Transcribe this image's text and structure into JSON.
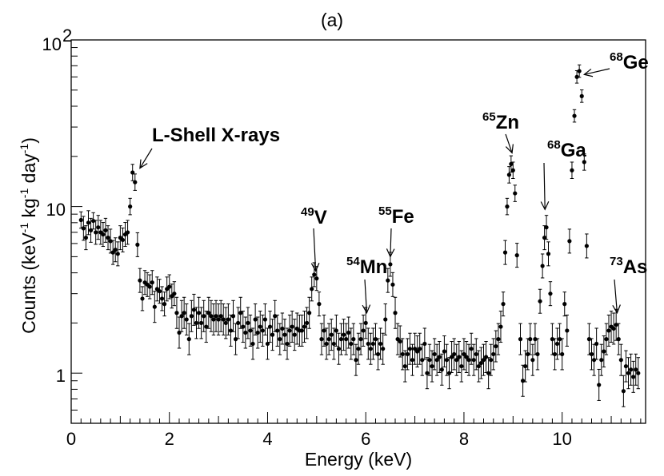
{
  "chart_data": {
    "type": "scatter",
    "title": "(a)",
    "xlabel": "Energy (keV)",
    "ylabel": {
      "prefix": "Counts (keV",
      "sup1": "-1",
      "mid1": " kg",
      "sup2": "-1",
      "mid2": " day",
      "sup3": "-1",
      "suffix": ")"
    },
    "xlim": [
      0,
      11.7
    ],
    "ylim": [
      0.5,
      100
    ],
    "yscale": "log",
    "x_ticks": [
      0,
      2,
      4,
      6,
      8,
      10
    ],
    "x_tick_labels": [
      "0",
      "2",
      "4",
      "6",
      "8",
      "10"
    ],
    "y_tick_labels": {
      "one": "1",
      "ten": "10",
      "hundred_base": "10",
      "hundred_exp": "2"
    },
    "series": [
      {
        "name": "spectrum",
        "points": [
          [
            0.2,
            8.3
          ],
          [
            0.25,
            7.4
          ],
          [
            0.3,
            6.5
          ],
          [
            0.35,
            8.0
          ],
          [
            0.4,
            7.2
          ],
          [
            0.45,
            8.2
          ],
          [
            0.5,
            7.0
          ],
          [
            0.55,
            7.5
          ],
          [
            0.6,
            7.0
          ],
          [
            0.65,
            6.8
          ],
          [
            0.7,
            7.2
          ],
          [
            0.75,
            6.5
          ],
          [
            0.8,
            6.2
          ],
          [
            0.85,
            5.3
          ],
          [
            0.9,
            5.5
          ],
          [
            0.95,
            5.2
          ],
          [
            1.0,
            6.5
          ],
          [
            1.05,
            6.3
          ],
          [
            1.1,
            6.8
          ],
          [
            1.15,
            7.0
          ],
          [
            1.2,
            10.0
          ],
          [
            1.25,
            16.0
          ],
          [
            1.3,
            14.0
          ],
          [
            1.35,
            5.9
          ],
          [
            1.4,
            3.6
          ],
          [
            1.45,
            2.8
          ],
          [
            1.5,
            3.5
          ],
          [
            1.55,
            3.4
          ],
          [
            1.6,
            3.3
          ],
          [
            1.65,
            3.5
          ],
          [
            1.7,
            2.5
          ],
          [
            1.75,
            3.2
          ],
          [
            1.8,
            3.1
          ],
          [
            1.85,
            2.8
          ],
          [
            1.9,
            2.6
          ],
          [
            1.95,
            3.2
          ],
          [
            2.0,
            3.3
          ],
          [
            2.05,
            2.9
          ],
          [
            2.1,
            3.0
          ],
          [
            2.15,
            2.3
          ],
          [
            2.2,
            1.75
          ],
          [
            2.25,
            2.2
          ],
          [
            2.3,
            2.3
          ],
          [
            2.35,
            2.1
          ],
          [
            2.4,
            1.6
          ],
          [
            2.45,
            2.2
          ],
          [
            2.5,
            2.4
          ],
          [
            2.55,
            2.0
          ],
          [
            2.6,
            2.3
          ],
          [
            2.65,
            2.0
          ],
          [
            2.7,
            2.2
          ],
          [
            2.75,
            1.9
          ],
          [
            2.8,
            2.3
          ],
          [
            2.85,
            2.2
          ],
          [
            2.9,
            2.1
          ],
          [
            2.95,
            2.2
          ],
          [
            3.0,
            2.1
          ],
          [
            3.05,
            2.2
          ],
          [
            3.1,
            2.1
          ],
          [
            3.15,
            2.0
          ],
          [
            3.2,
            2.1
          ],
          [
            3.25,
            1.8
          ],
          [
            3.3,
            2.2
          ],
          [
            3.35,
            1.6
          ],
          [
            3.4,
            2.0
          ],
          [
            3.45,
            2.3
          ],
          [
            3.5,
            1.9
          ],
          [
            3.55,
            1.75
          ],
          [
            3.6,
            2.0
          ],
          [
            3.65,
            1.8
          ],
          [
            3.7,
            1.5
          ],
          [
            3.75,
            2.1
          ],
          [
            3.8,
            1.75
          ],
          [
            3.85,
            1.9
          ],
          [
            3.9,
            1.8
          ],
          [
            3.95,
            2.1
          ],
          [
            4.0,
            1.5
          ],
          [
            4.05,
            1.9
          ],
          [
            4.1,
            1.7
          ],
          [
            4.15,
            2.2
          ],
          [
            4.2,
            1.8
          ],
          [
            4.25,
            1.6
          ],
          [
            4.3,
            1.85
          ],
          [
            4.35,
            1.7
          ],
          [
            4.4,
            1.5
          ],
          [
            4.45,
            1.8
          ],
          [
            4.5,
            1.9
          ],
          [
            4.55,
            1.7
          ],
          [
            4.6,
            1.85
          ],
          [
            4.65,
            1.8
          ],
          [
            4.7,
            1.8
          ],
          [
            4.75,
            1.9
          ],
          [
            4.8,
            2.0
          ],
          [
            4.85,
            2.3
          ],
          [
            4.9,
            3.2
          ],
          [
            4.95,
            3.9
          ],
          [
            5.0,
            3.7
          ],
          [
            5.05,
            2.6
          ],
          [
            5.1,
            1.6
          ],
          [
            5.15,
            1.8
          ],
          [
            5.2,
            1.5
          ],
          [
            5.25,
            1.6
          ],
          [
            5.3,
            1.7
          ],
          [
            5.35,
            1.5
          ],
          [
            5.4,
            1.8
          ],
          [
            5.45,
            1.4
          ],
          [
            5.5,
            1.6
          ],
          [
            5.55,
            1.7
          ],
          [
            5.6,
            1.6
          ],
          [
            5.65,
            1.75
          ],
          [
            5.7,
            1.5
          ],
          [
            5.75,
            1.6
          ],
          [
            5.8,
            1.2
          ],
          [
            5.85,
            1.4
          ],
          [
            5.9,
            1.6
          ],
          [
            5.95,
            1.8
          ],
          [
            6.0,
            2.0
          ],
          [
            6.05,
            1.5
          ],
          [
            6.1,
            1.4
          ],
          [
            6.15,
            1.5
          ],
          [
            6.2,
            1.6
          ],
          [
            6.25,
            1.3
          ],
          [
            6.3,
            1.5
          ],
          [
            6.35,
            1.4
          ],
          [
            6.4,
            2.1
          ],
          [
            6.45,
            3.6
          ],
          [
            6.5,
            4.5
          ],
          [
            6.55,
            3.4
          ],
          [
            6.6,
            2.3
          ],
          [
            6.65,
            1.6
          ],
          [
            6.7,
            1.55
          ],
          [
            6.75,
            1.3
          ],
          [
            6.8,
            1.1
          ],
          [
            6.85,
            1.3
          ],
          [
            6.9,
            1.4
          ],
          [
            6.95,
            1.2
          ],
          [
            7.0,
            1.4
          ],
          [
            7.05,
            1.35
          ],
          [
            7.1,
            1.4
          ],
          [
            7.15,
            1.2
          ],
          [
            7.2,
            1.5
          ],
          [
            7.25,
            1.0
          ],
          [
            7.3,
            1.2
          ],
          [
            7.35,
            1.1
          ],
          [
            7.4,
            1.3
          ],
          [
            7.45,
            1.2
          ],
          [
            7.5,
            1.25
          ],
          [
            7.55,
            1.05
          ],
          [
            7.6,
            1.35
          ],
          [
            7.65,
            1.2
          ],
          [
            7.7,
            1.0
          ],
          [
            7.75,
            1.25
          ],
          [
            7.8,
            1.3
          ],
          [
            7.85,
            1.2
          ],
          [
            7.9,
            1.25
          ],
          [
            7.95,
            1.1
          ],
          [
            8.0,
            1.3
          ],
          [
            8.05,
            1.25
          ],
          [
            8.1,
            1.2
          ],
          [
            8.15,
            1.4
          ],
          [
            8.2,
            1.2
          ],
          [
            8.25,
            1.3
          ],
          [
            8.3,
            1.1
          ],
          [
            8.35,
            1.15
          ],
          [
            8.4,
            1.2
          ],
          [
            8.45,
            1.25
          ],
          [
            8.5,
            1.0
          ],
          [
            8.55,
            1.2
          ],
          [
            8.6,
            1.3
          ],
          [
            8.65,
            1.45
          ],
          [
            8.7,
            1.6
          ],
          [
            8.75,
            1.9
          ],
          [
            8.8,
            2.6
          ],
          [
            8.84,
            5.3
          ],
          [
            8.88,
            10.0
          ],
          [
            8.92,
            15.5
          ],
          [
            8.96,
            18.0
          ],
          [
            9.0,
            16.5
          ],
          [
            9.04,
            12.0
          ],
          [
            9.08,
            5.1
          ],
          [
            9.15,
            1.6
          ],
          [
            9.2,
            0.9
          ],
          [
            9.25,
            1.1
          ],
          [
            9.3,
            1.3
          ],
          [
            9.35,
            1.6
          ],
          [
            9.4,
            1.2
          ],
          [
            9.45,
            1.6
          ],
          [
            9.5,
            1.3
          ],
          [
            9.55,
            2.7
          ],
          [
            9.6,
            4.4
          ],
          [
            9.64,
            6.5
          ],
          [
            9.68,
            7.5
          ],
          [
            9.72,
            5.2
          ],
          [
            9.76,
            3.0
          ],
          [
            9.8,
            1.6
          ],
          [
            9.85,
            1.3
          ],
          [
            9.9,
            1.5
          ],
          [
            9.95,
            1.6
          ],
          [
            10.0,
            1.3
          ],
          [
            10.05,
            2.6
          ],
          [
            10.1,
            1.8
          ],
          [
            10.15,
            6.2
          ],
          [
            10.2,
            16.5
          ],
          [
            10.25,
            35.0
          ],
          [
            10.3,
            60.0
          ],
          [
            10.35,
            65.0
          ],
          [
            10.4,
            46.0
          ],
          [
            10.45,
            18.5
          ],
          [
            10.5,
            5.8
          ],
          [
            10.55,
            1.6
          ],
          [
            10.6,
            1.3
          ],
          [
            10.65,
            1.2
          ],
          [
            10.7,
            1.5
          ],
          [
            10.75,
            0.85
          ],
          [
            10.8,
            1.2
          ],
          [
            10.85,
            1.35
          ],
          [
            10.9,
            1.6
          ],
          [
            10.95,
            1.8
          ],
          [
            11.0,
            1.9
          ],
          [
            11.05,
            1.85
          ],
          [
            11.1,
            1.95
          ],
          [
            11.15,
            1.6
          ],
          [
            11.2,
            1.2
          ],
          [
            11.25,
            0.78
          ],
          [
            11.3,
            1.1
          ],
          [
            11.35,
            1.0
          ],
          [
            11.4,
            1.05
          ],
          [
            11.45,
            0.95
          ],
          [
            11.5,
            1.05
          ],
          [
            11.55,
            1.0
          ]
        ]
      }
    ],
    "annotations": [
      {
        "sup": "",
        "text": "L-Shell X-rays",
        "arrow_to": [
          1.4,
          17.0
        ]
      },
      {
        "sup": "49",
        "text": "V",
        "arrow_to": [
          4.98,
          4.1
        ]
      },
      {
        "sup": "54",
        "text": "Mn",
        "arrow_to": [
          6.02,
          2.3
        ]
      },
      {
        "sup": "55",
        "text": "Fe",
        "arrow_to": [
          6.5,
          5.0
        ]
      },
      {
        "sup": "65",
        "text": "Zn",
        "arrow_to": [
          8.98,
          21.0
        ]
      },
      {
        "sup": "68",
        "text": "Ga",
        "arrow_to": [
          9.65,
          9.6
        ]
      },
      {
        "sup": "68",
        "text": "Ge",
        "arrow_to": [
          10.45,
          62.0
        ]
      },
      {
        "sup": "73",
        "text": "As",
        "arrow_to": [
          11.12,
          2.3
        ]
      }
    ]
  }
}
